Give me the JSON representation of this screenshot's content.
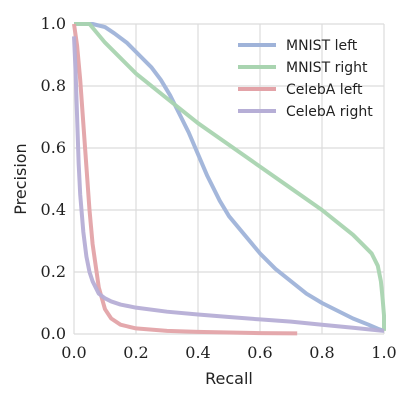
{
  "chart_data": {
    "type": "line",
    "xlabel": "Recall",
    "ylabel": "Precision",
    "xlim": [
      0.0,
      1.0
    ],
    "ylim": [
      0.0,
      1.0
    ],
    "xticks": [
      "0.0",
      "0.2",
      "0.4",
      "0.6",
      "0.8",
      "1.0"
    ],
    "yticks": [
      "0.0",
      "0.2",
      "0.4",
      "0.6",
      "0.8",
      "1.0"
    ],
    "grid": true,
    "legend_position": "top-right",
    "series": [
      {
        "name": "MNIST left",
        "color": "#9fb3d9",
        "x": [
          0.0,
          0.06,
          0.1,
          0.13,
          0.17,
          0.21,
          0.25,
          0.28,
          0.31,
          0.34,
          0.37,
          0.4,
          0.43,
          0.47,
          0.5,
          0.55,
          0.6,
          0.65,
          0.7,
          0.75,
          0.8,
          0.85,
          0.9,
          0.95,
          0.98,
          1.0
        ],
        "y": [
          1.0,
          1.0,
          0.99,
          0.97,
          0.94,
          0.9,
          0.86,
          0.82,
          0.77,
          0.71,
          0.65,
          0.58,
          0.51,
          0.43,
          0.38,
          0.32,
          0.26,
          0.21,
          0.17,
          0.13,
          0.1,
          0.075,
          0.05,
          0.03,
          0.017,
          0.01
        ]
      },
      {
        "name": "MNIST right",
        "color": "#a9d4b0",
        "x": [
          0.0,
          0.05,
          0.1,
          0.15,
          0.2,
          0.3,
          0.4,
          0.5,
          0.6,
          0.7,
          0.8,
          0.85,
          0.9,
          0.93,
          0.96,
          0.98,
          0.99,
          0.995,
          1.0,
          1.0
        ],
        "y": [
          1.0,
          1.0,
          0.94,
          0.89,
          0.84,
          0.76,
          0.68,
          0.61,
          0.54,
          0.47,
          0.4,
          0.36,
          0.32,
          0.29,
          0.26,
          0.22,
          0.17,
          0.12,
          0.06,
          0.01
        ]
      },
      {
        "name": "CelebA left",
        "color": "#e3a3a8",
        "x": [
          0.0,
          0.01,
          0.02,
          0.03,
          0.04,
          0.05,
          0.06,
          0.08,
          0.1,
          0.12,
          0.15,
          0.2,
          0.3,
          0.4,
          0.5,
          0.6,
          0.72
        ],
        "y": [
          1.0,
          0.93,
          0.82,
          0.68,
          0.54,
          0.4,
          0.29,
          0.15,
          0.08,
          0.05,
          0.03,
          0.018,
          0.01,
          0.007,
          0.005,
          0.003,
          0.002
        ]
      },
      {
        "name": "CelebA right",
        "color": "#b6aed6",
        "x": [
          0.0,
          0.005,
          0.01,
          0.015,
          0.02,
          0.03,
          0.04,
          0.05,
          0.06,
          0.08,
          0.1,
          0.12,
          0.15,
          0.2,
          0.3,
          0.4,
          0.5,
          0.6,
          0.7,
          0.8,
          0.9,
          1.0
        ],
        "y": [
          0.96,
          0.85,
          0.7,
          0.55,
          0.45,
          0.33,
          0.25,
          0.2,
          0.17,
          0.13,
          0.115,
          0.105,
          0.095,
          0.085,
          0.072,
          0.063,
          0.055,
          0.047,
          0.04,
          0.03,
          0.02,
          0.01
        ]
      }
    ]
  }
}
